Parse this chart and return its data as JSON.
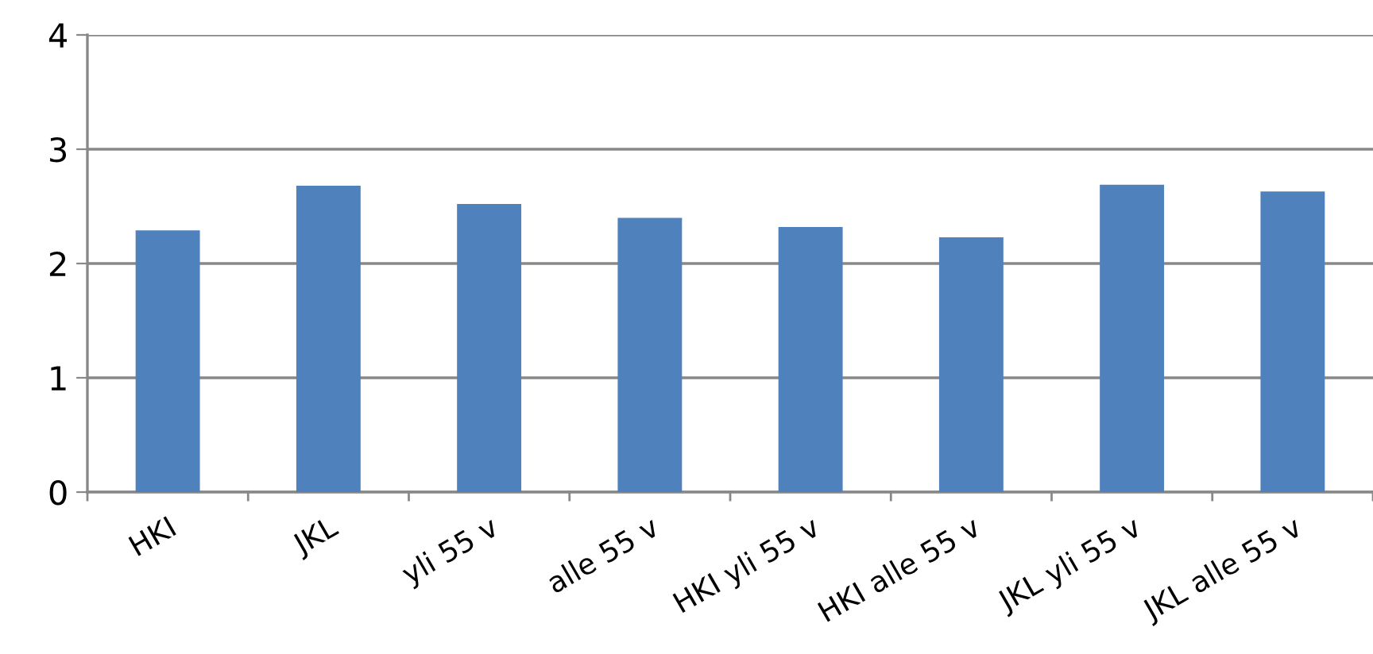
{
  "chart_data": {
    "type": "bar",
    "categories": [
      "HKI",
      "JKL",
      "yli 55 v",
      "alle 55 v",
      "HKI yli 55 v",
      "HKI alle 55 v",
      "JKL yli 55 v",
      "JKL alle 55 v"
    ],
    "values": [
      2.29,
      2.68,
      2.52,
      2.4,
      2.32,
      2.23,
      2.69,
      2.63
    ],
    "color": "#4f81bd",
    "ylim": [
      0,
      4
    ],
    "yticks": [
      0,
      1,
      2,
      3,
      4
    ],
    "grid": "y",
    "legend": false
  }
}
